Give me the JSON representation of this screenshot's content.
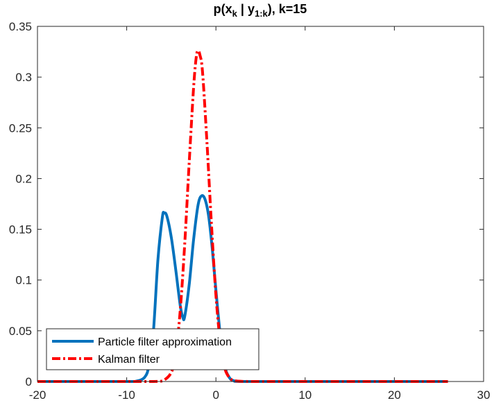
{
  "chart_data": {
    "type": "line",
    "title": {
      "main": "p(x",
      "sub_k": "k",
      "mid": " |  y",
      "sub_1k": "1:k",
      "tail": "), k=15"
    },
    "xlabel": "",
    "ylabel": "",
    "xlim": [
      -20,
      30
    ],
    "ylim": [
      0,
      0.35
    ],
    "xticks": [
      -20,
      -10,
      0,
      10,
      20,
      30
    ],
    "xtick_labels": [
      "-20",
      "-10",
      "0",
      "10",
      "20",
      "30"
    ],
    "yticks": [
      0,
      0.05,
      0.1,
      0.15,
      0.2,
      0.25,
      0.3,
      0.35
    ],
    "ytick_labels": [
      "0",
      "0.05",
      "0.1",
      "0.15",
      "0.2",
      "0.25",
      "0.3",
      "0.35"
    ],
    "grid": false,
    "legend_position": "bottom-left",
    "series": [
      {
        "name": "Particle filter approximation",
        "color": "#0072BD",
        "style": "solid",
        "x": [
          -20,
          -10,
          -9,
          -8,
          -7.5,
          -7,
          -6.5,
          -6,
          -5.8,
          -5.5,
          -5,
          -4.5,
          -4,
          -3.7,
          -3.5,
          -3,
          -2.5,
          -2,
          -1.6,
          -1.2,
          -0.8,
          -0.4,
          0,
          0.5,
          1,
          1.5,
          2,
          3,
          10,
          26
        ],
        "y": [
          0,
          0,
          0.0002,
          0.004,
          0.016,
          0.05,
          0.12,
          0.162,
          0.166,
          0.163,
          0.142,
          0.11,
          0.075,
          0.063,
          0.064,
          0.095,
          0.14,
          0.174,
          0.183,
          0.179,
          0.162,
          0.13,
          0.09,
          0.045,
          0.015,
          0.004,
          0.0008,
          0,
          0,
          0
        ]
      },
      {
        "name": "Kalman filter",
        "color": "#FF0000",
        "style": "dashdot",
        "x": [
          -20,
          -10,
          -7,
          -6,
          -5,
          -4.5,
          -4,
          -3.5,
          -3,
          -2.5,
          -2.2,
          -2,
          -1.8,
          -1.5,
          -1,
          -0.5,
          0,
          0.5,
          1,
          1.5,
          2,
          3,
          5,
          10,
          26
        ],
        "y": [
          0,
          0,
          0,
          0.0005,
          0.009,
          0.028,
          0.07,
          0.135,
          0.215,
          0.29,
          0.32,
          0.326,
          0.322,
          0.305,
          0.235,
          0.155,
          0.085,
          0.038,
          0.013,
          0.004,
          0.001,
          0.0001,
          0,
          0,
          0
        ]
      }
    ]
  }
}
